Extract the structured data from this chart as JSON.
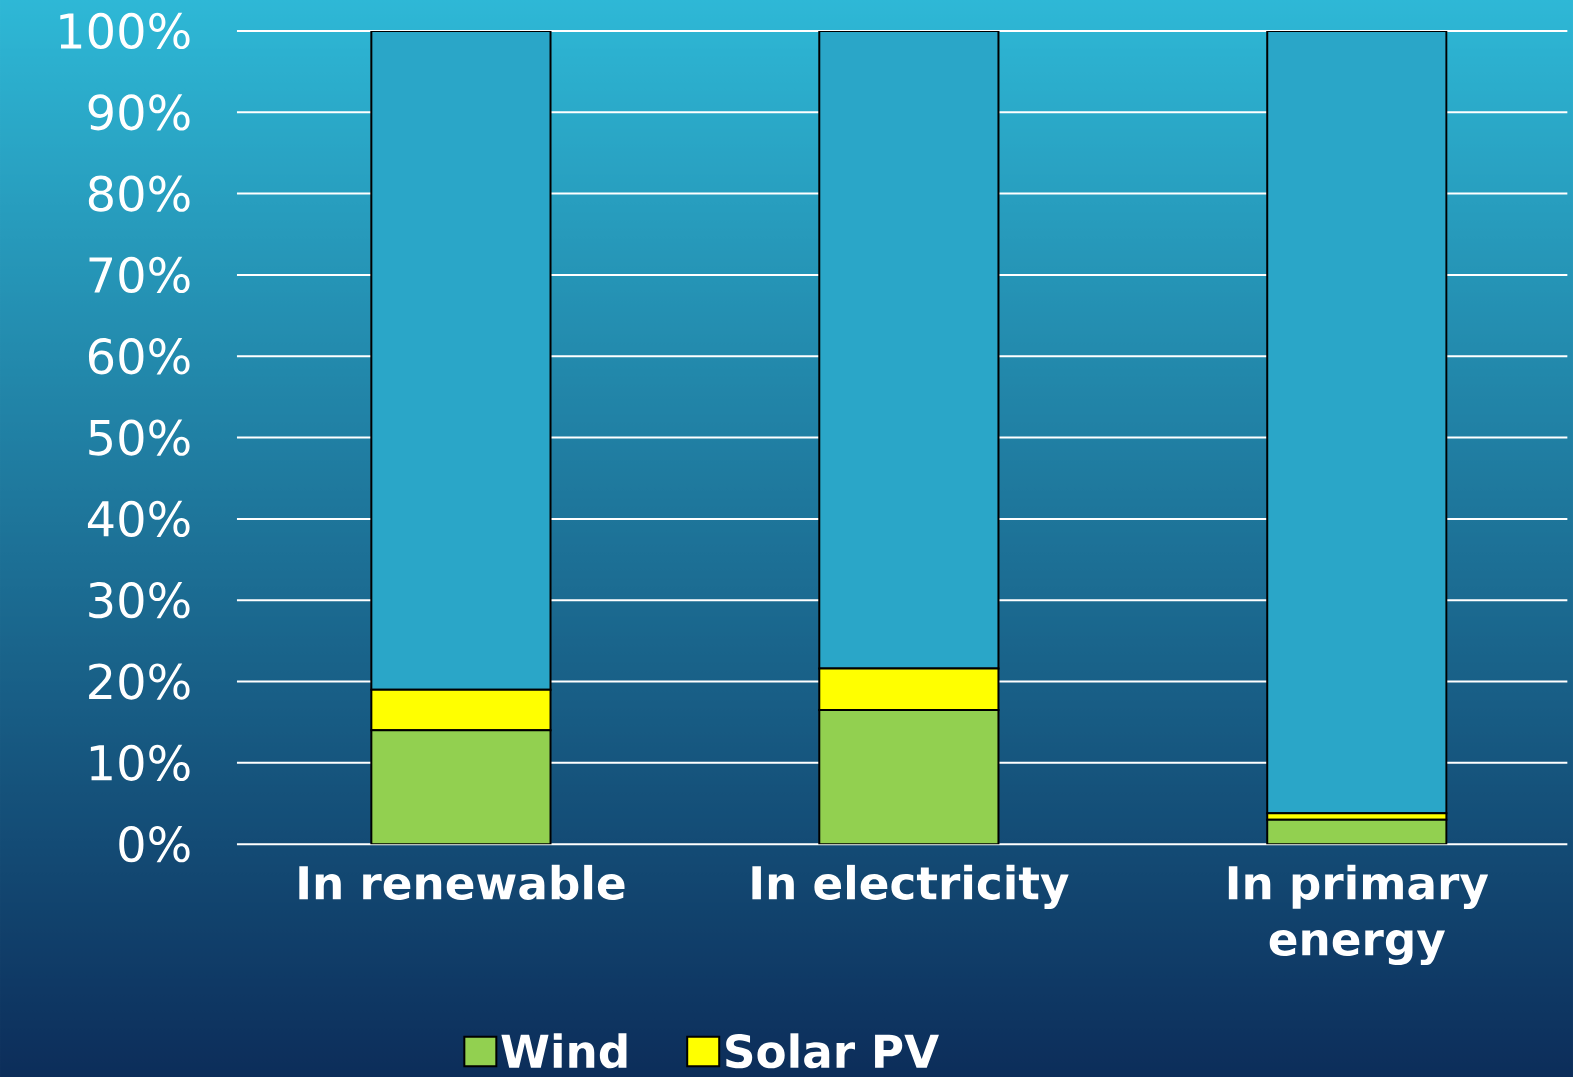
{
  "chart_data": {
    "type": "bar",
    "stacked": true,
    "categories": [
      "In renewable",
      "In electricity",
      "In primary energy"
    ],
    "series": [
      {
        "name": "Wind",
        "color": "#92d050",
        "values": [
          14.0,
          16.5,
          3.0
        ]
      },
      {
        "name": "Solar PV",
        "color": "#ffff00",
        "values": [
          5.0,
          5.1,
          0.8
        ]
      },
      {
        "color": "#2aa6c8",
        "values": [
          81.0,
          78.4,
          96.2
        ]
      }
    ],
    "ylim": [
      0,
      100
    ],
    "yticks": [
      {
        "value": 0,
        "label": "0%"
      },
      {
        "value": 10,
        "label": "10%"
      },
      {
        "value": 20,
        "label": "20%"
      },
      {
        "value": 30,
        "label": "30%"
      },
      {
        "value": 40,
        "label": "40%"
      },
      {
        "value": 50,
        "label": "50%"
      },
      {
        "value": 60,
        "label": "60%"
      },
      {
        "value": 70,
        "label": "70%"
      },
      {
        "value": 80,
        "label": "80%"
      },
      {
        "value": 90,
        "label": "90%"
      },
      {
        "value": 100,
        "label": "100%"
      }
    ],
    "grid": "y",
    "legend": "bottom"
  }
}
